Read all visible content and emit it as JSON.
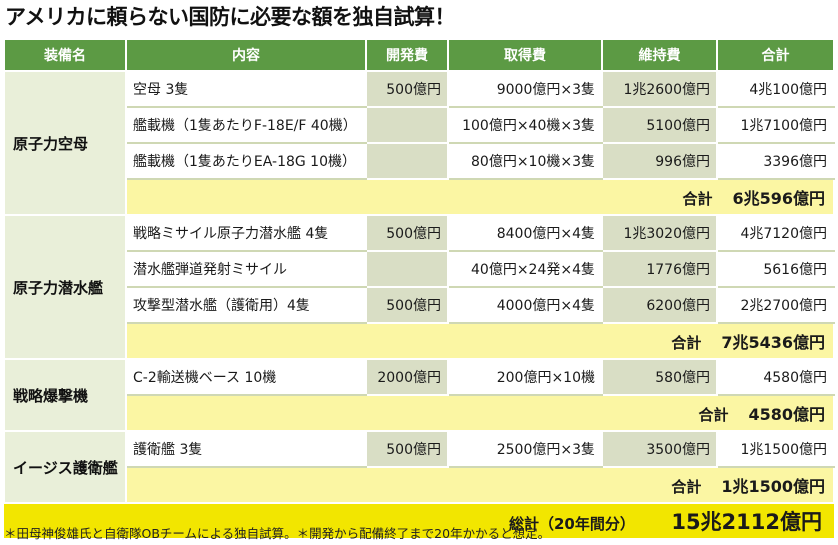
{
  "title": "アメリカに頼らない国防に必要な額を独自試算！",
  "headers": [
    "装備名",
    "内容",
    "開発費",
    "取得費",
    "維持費",
    "合計"
  ],
  "groups": [
    {
      "name": "原子力空母",
      "rows": [
        {
          "item": "空母 3隻",
          "dev": "500億円",
          "acq": "9000億円×3隻",
          "maint": "1兆2600億円",
          "total": "4兆100億円"
        },
        {
          "item": "艦載機（1隻あたりF-18E/F 40機）",
          "dev": "",
          "acq": "100億円×40機×3隻",
          "maint": "5100億円",
          "total": "1兆7100億円"
        },
        {
          "item": "艦載機（1隻あたりEA-18G 10機）",
          "dev": "",
          "acq": "80億円×10機×3隻",
          "maint": "996億円",
          "total": "3396億円"
        }
      ],
      "subtotal_label": "合計",
      "subtotal": "6兆596億円"
    },
    {
      "name": "原子力潜水艦",
      "rows": [
        {
          "item": "戦略ミサイル原子力潜水艦 4隻",
          "dev": "500億円",
          "acq": "8400億円×4隻",
          "maint": "1兆3020億円",
          "total": "4兆7120億円"
        },
        {
          "item": "潜水艦弾道発射ミサイル",
          "dev": "",
          "acq": "40億円×24発×4隻",
          "maint": "1776億円",
          "total": "5616億円"
        },
        {
          "item": "攻撃型潜水艦（護衛用）4隻",
          "dev": "500億円",
          "acq": "4000億円×4隻",
          "maint": "6200億円",
          "total": "2兆2700億円"
        }
      ],
      "subtotal_label": "合計",
      "subtotal": "7兆5436億円"
    },
    {
      "name": "戦略爆撃機",
      "rows": [
        {
          "item": "C-2輸送機ベース 10機",
          "dev": "2000億円",
          "acq": "200億円×10機",
          "maint": "580億円",
          "total": "4580億円"
        }
      ],
      "subtotal_label": "合計",
      "subtotal": "4580億円"
    },
    {
      "name": "イージス護衛艦",
      "rows": [
        {
          "item": "護衛艦 3隻",
          "dev": "500億円",
          "acq": "2500億円×3隻",
          "maint": "3500億円",
          "total": "1兆1500億円"
        }
      ],
      "subtotal_label": "合計",
      "subtotal": "1兆1500億円"
    }
  ],
  "grand_total_label": "総計（20年間分）",
  "grand_total": "15兆2112億円",
  "footnote": "＊田母神俊雄氏と自衛隊OBチームによる独自試算。＊開発から配備終了まで20年かかると想定。",
  "colors": {
    "header_green": "#5c9a44",
    "group_bg": "#e9efd9",
    "shade": "#d9dec5",
    "subtotal_bg": "#fbf6a3",
    "grand_bg": "#f2e600"
  }
}
